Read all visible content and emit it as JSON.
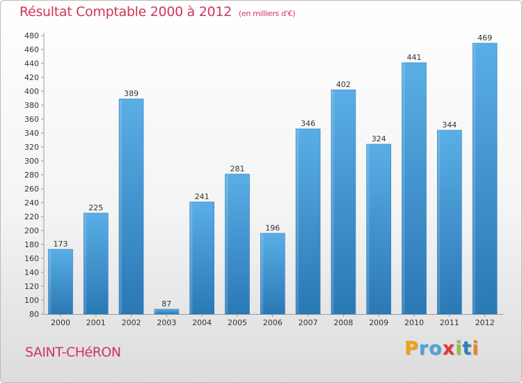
{
  "header": {
    "title": "Résultat Comptable 2000 à 2012",
    "subtitle": "(en milliers d'€)"
  },
  "footer": {
    "commune": "SAINT-CHéRON",
    "logo_letters": [
      "P",
      "r",
      "o",
      "x",
      "i",
      "t",
      "i"
    ]
  },
  "colors": {
    "accent": "#d0345a",
    "bar_top": "#5aaee6",
    "bar_bottom": "#2a78b4"
  },
  "chart_data": {
    "type": "bar",
    "title": "Résultat Comptable 2000 à 2012",
    "subtitle": "(en milliers d'€)",
    "xlabel": "",
    "ylabel": "",
    "categories": [
      "2000",
      "2001",
      "2002",
      "2003",
      "2004",
      "2005",
      "2006",
      "2007",
      "2008",
      "2009",
      "2010",
      "2011",
      "2012"
    ],
    "values": [
      173,
      225,
      389,
      87,
      241,
      281,
      196,
      346,
      402,
      324,
      441,
      344,
      469
    ],
    "ylim": [
      80,
      480
    ],
    "yticks": [
      80,
      100,
      120,
      140,
      160,
      180,
      200,
      220,
      240,
      260,
      280,
      300,
      320,
      340,
      360,
      380,
      400,
      420,
      440,
      460,
      480
    ],
    "grid": false,
    "data_labels": true
  }
}
